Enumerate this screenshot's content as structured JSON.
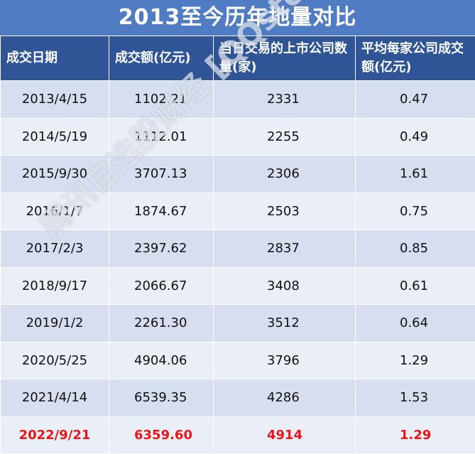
{
  "title": "2013至今历年地量对比",
  "table": {
    "header": [
      "成交日期",
      "成交额(亿元)",
      "当日交易的上市公司数量(家)",
      "平均每家公司成交额(亿元)"
    ],
    "rows": [
      [
        "2013/4/15",
        "1102.21",
        "2331",
        "0.47"
      ],
      [
        "2014/5/19",
        "1112.01",
        "2255",
        "0.49"
      ],
      [
        "2015/9/30",
        "3707.13",
        "2306",
        "1.61"
      ],
      [
        "2016/1/7",
        "1874.67",
        "2503",
        "0.75"
      ],
      [
        "2017/2/3",
        "2397.62",
        "2837",
        "0.85"
      ],
      [
        "2018/9/17",
        "2066.67",
        "3408",
        "0.61"
      ],
      [
        "2019/1/2",
        "2261.30",
        "3512",
        "0.64"
      ],
      [
        "2020/5/25",
        "4904.06",
        "3796",
        "1.29"
      ],
      [
        "2021/4/14",
        "6539.35",
        "4286",
        "1.53"
      ],
      [
        "2022/9/21",
        "6359.60",
        "4914",
        "1.29"
      ]
    ]
  },
  "watermark": "腾讯自选股财经 [QQstock]"
}
